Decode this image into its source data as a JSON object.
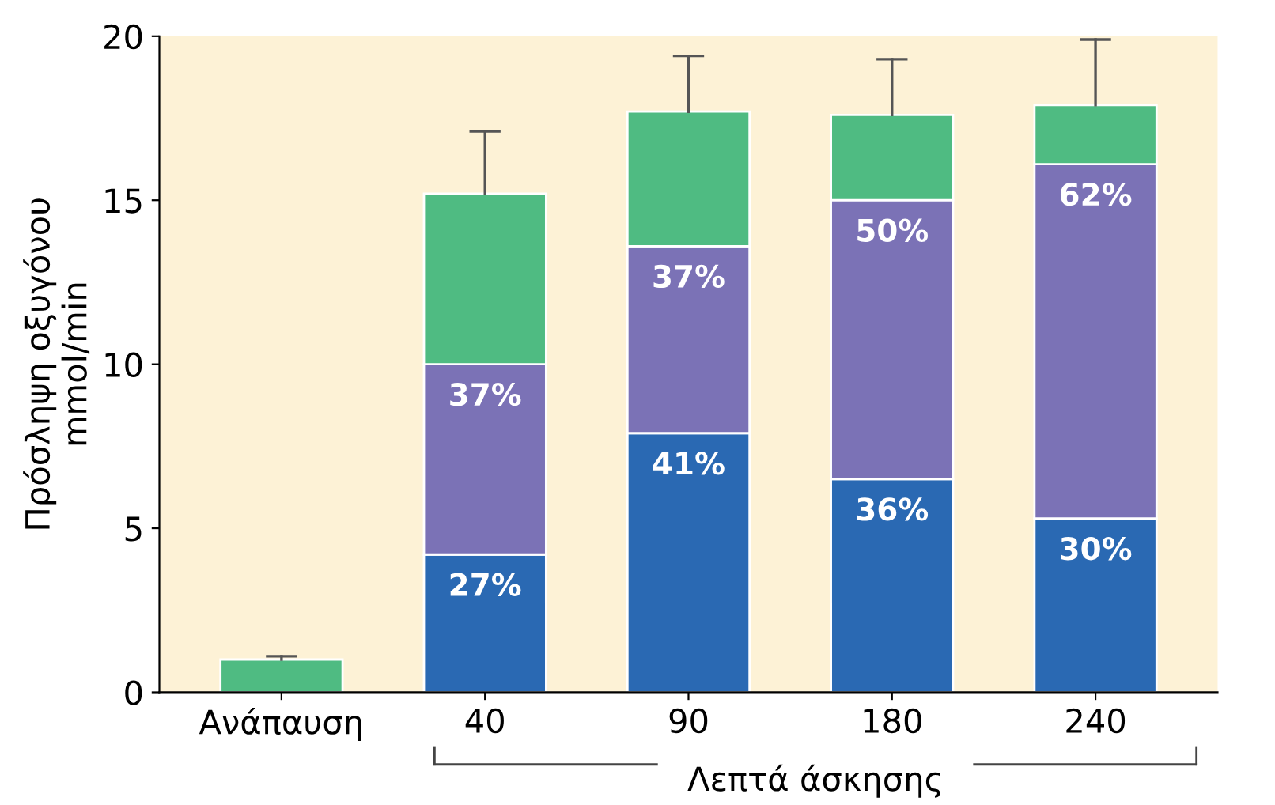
{
  "chart_data": {
    "type": "bar",
    "stacked": true,
    "xlabel": "Λεπτά άσκησης",
    "ylabel": "Πρόσληψη οξυγόνου\nmmol/min",
    "categories": [
      "Ανάπαυση",
      "40",
      "90",
      "180",
      "240"
    ],
    "series": [
      {
        "color": "#2a69b3",
        "values": [
          0,
          4.2,
          7.9,
          6.5,
          5.3
        ]
      },
      {
        "color": "#7b72b6",
        "values": [
          0,
          5.8,
          5.7,
          8.5,
          10.8
        ]
      },
      {
        "color": "#4fbb82",
        "values": [
          1.0,
          5.2,
          4.1,
          2.6,
          1.8
        ],
        "errors": [
          [
            1.0,
            1.1
          ],
          [
            15.2,
            17.1
          ],
          [
            17.7,
            19.4
          ],
          [
            17.6,
            19.3
          ],
          [
            17.9,
            19.9
          ]
        ]
      }
    ],
    "annotations": [
      "27%",
      "41%",
      "36%",
      "30%",
      "37%",
      "37%",
      "50%",
      "62%"
    ],
    "ylim": [
      0,
      20
    ],
    "yticks": [
      0,
      5,
      10,
      15,
      20
    ],
    "grid": false,
    "legend": false
  }
}
